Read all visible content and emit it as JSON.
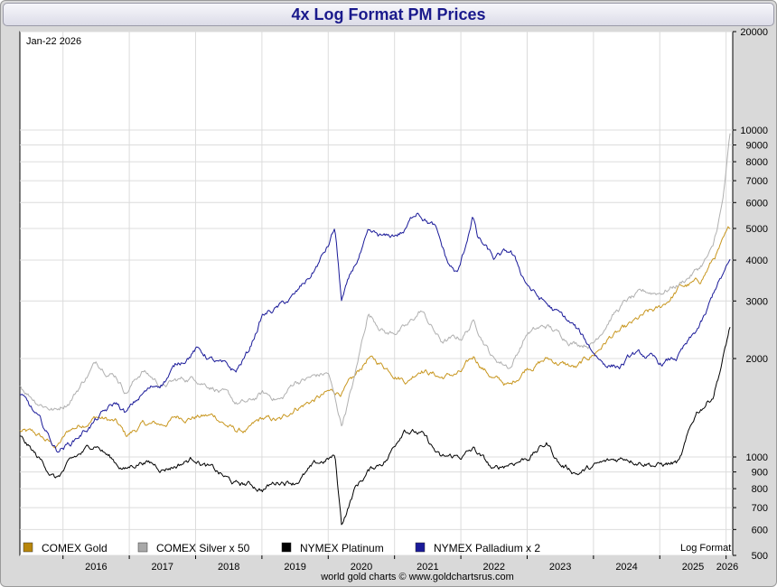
{
  "chart_data": {
    "type": "line",
    "title": "4x Log Format PM Prices",
    "date_label": "Jan-22  2026",
    "scale_note": "Log Format",
    "footer": "world gold charts © www.goldchartsrus.com",
    "y_scale": "log",
    "ylim": [
      500,
      20000
    ],
    "y_ticks": [
      500,
      600,
      700,
      800,
      900,
      1000,
      2000,
      3000,
      4000,
      5000,
      6000,
      7000,
      8000,
      9000,
      10000,
      20000
    ],
    "xlim": [
      2015.35,
      2026.1
    ],
    "x_ticks": [
      "2016",
      "2017",
      "2018",
      "2019",
      "2020",
      "2021",
      "2022",
      "2023",
      "2024",
      "2025",
      "2026"
    ],
    "series": [
      {
        "name": "COMEX Gold",
        "color": "#c8961e",
        "legend_color": "#b8860b",
        "points": [
          [
            2015.35,
            1200
          ],
          [
            2015.6,
            1160
          ],
          [
            2015.9,
            1070
          ],
          [
            2016.1,
            1200
          ],
          [
            2016.5,
            1340
          ],
          [
            2016.8,
            1270
          ],
          [
            2016.95,
            1150
          ],
          [
            2017.2,
            1250
          ],
          [
            2017.5,
            1250
          ],
          [
            2017.7,
            1320
          ],
          [
            2018.0,
            1340
          ],
          [
            2018.3,
            1330
          ],
          [
            2018.6,
            1200
          ],
          [
            2018.8,
            1200
          ],
          [
            2019.0,
            1290
          ],
          [
            2019.3,
            1280
          ],
          [
            2019.5,
            1420
          ],
          [
            2019.75,
            1490
          ],
          [
            2020.0,
            1560
          ],
          [
            2020.2,
            1580
          ],
          [
            2020.4,
            1720
          ],
          [
            2020.6,
            2000
          ],
          [
            2020.9,
            1870
          ],
          [
            2021.2,
            1730
          ],
          [
            2021.4,
            1900
          ],
          [
            2021.7,
            1760
          ],
          [
            2022.0,
            1800
          ],
          [
            2022.2,
            2000
          ],
          [
            2022.5,
            1740
          ],
          [
            2022.75,
            1640
          ],
          [
            2023.0,
            1900
          ],
          [
            2023.3,
            2000
          ],
          [
            2023.5,
            1940
          ],
          [
            2023.75,
            1860
          ],
          [
            2024.0,
            2050
          ],
          [
            2024.25,
            2330
          ],
          [
            2024.5,
            2450
          ],
          [
            2024.8,
            2700
          ],
          [
            2025.0,
            2800
          ],
          [
            2025.3,
            3300
          ],
          [
            2025.6,
            3400
          ],
          [
            2025.8,
            4000
          ],
          [
            2026.06,
            4900
          ]
        ]
      },
      {
        "name": "COMEX Silver x 50",
        "color": "#b0b0b0",
        "legend_color": "#a8a8a8",
        "points": [
          [
            2015.35,
            1650
          ],
          [
            2015.6,
            1500
          ],
          [
            2015.9,
            1400
          ],
          [
            2016.1,
            1500
          ],
          [
            2016.5,
            1950
          ],
          [
            2016.8,
            1800
          ],
          [
            2016.95,
            1600
          ],
          [
            2017.2,
            1850
          ],
          [
            2017.5,
            1650
          ],
          [
            2017.7,
            1700
          ],
          [
            2018.0,
            1750
          ],
          [
            2018.3,
            1650
          ],
          [
            2018.6,
            1450
          ],
          [
            2018.8,
            1450
          ],
          [
            2019.0,
            1550
          ],
          [
            2019.3,
            1500
          ],
          [
            2019.5,
            1700
          ],
          [
            2019.75,
            1750
          ],
          [
            2020.0,
            1800
          ],
          [
            2020.2,
            1250
          ],
          [
            2020.4,
            1750
          ],
          [
            2020.6,
            2750
          ],
          [
            2020.9,
            2400
          ],
          [
            2021.2,
            2500
          ],
          [
            2021.4,
            2800
          ],
          [
            2021.7,
            2250
          ],
          [
            2022.0,
            2300
          ],
          [
            2022.2,
            2600
          ],
          [
            2022.5,
            2000
          ],
          [
            2022.75,
            1900
          ],
          [
            2023.0,
            2400
          ],
          [
            2023.3,
            2500
          ],
          [
            2023.5,
            2350
          ],
          [
            2023.75,
            2250
          ],
          [
            2024.0,
            2250
          ],
          [
            2024.25,
            2700
          ],
          [
            2024.5,
            3000
          ],
          [
            2024.8,
            3150
          ],
          [
            2025.0,
            3200
          ],
          [
            2025.3,
            3400
          ],
          [
            2025.6,
            3800
          ],
          [
            2025.8,
            4300
          ],
          [
            2025.95,
            6000
          ],
          [
            2026.06,
            9500
          ]
        ]
      },
      {
        "name": "NYMEX Platinum",
        "color": "#000000",
        "legend_color": "#000000",
        "points": [
          [
            2015.35,
            1150
          ],
          [
            2015.6,
            1000
          ],
          [
            2015.9,
            860
          ],
          [
            2016.1,
            950
          ],
          [
            2016.5,
            1100
          ],
          [
            2016.8,
            960
          ],
          [
            2016.95,
            920
          ],
          [
            2017.2,
            980
          ],
          [
            2017.5,
            930
          ],
          [
            2017.7,
            950
          ],
          [
            2018.0,
            1000
          ],
          [
            2018.3,
            900
          ],
          [
            2018.6,
            820
          ],
          [
            2018.8,
            820
          ],
          [
            2019.0,
            800
          ],
          [
            2019.3,
            850
          ],
          [
            2019.5,
            850
          ],
          [
            2019.75,
            920
          ],
          [
            2020.0,
            980
          ],
          [
            2020.1,
            1000
          ],
          [
            2020.2,
            620
          ],
          [
            2020.4,
            800
          ],
          [
            2020.6,
            900
          ],
          [
            2020.9,
            1000
          ],
          [
            2021.15,
            1250
          ],
          [
            2021.4,
            1180
          ],
          [
            2021.7,
            980
          ],
          [
            2022.0,
            1000
          ],
          [
            2022.2,
            1050
          ],
          [
            2022.5,
            900
          ],
          [
            2022.75,
            960
          ],
          [
            2023.0,
            1000
          ],
          [
            2023.3,
            1100
          ],
          [
            2023.5,
            950
          ],
          [
            2023.75,
            900
          ],
          [
            2024.0,
            930
          ],
          [
            2024.25,
            960
          ],
          [
            2024.5,
            1000
          ],
          [
            2024.8,
            980
          ],
          [
            2025.0,
            950
          ],
          [
            2025.3,
            960
          ],
          [
            2025.55,
            1350
          ],
          [
            2025.8,
            1550
          ],
          [
            2025.95,
            2000
          ],
          [
            2026.06,
            2500
          ]
        ]
      },
      {
        "name": "NYMEX Palladium x 2",
        "color": "#1a1a99",
        "legend_color": "#1a1a99",
        "points": [
          [
            2015.35,
            1550
          ],
          [
            2015.6,
            1320
          ],
          [
            2015.9,
            1050
          ],
          [
            2016.1,
            1100
          ],
          [
            2016.5,
            1300
          ],
          [
            2016.8,
            1450
          ],
          [
            2016.95,
            1350
          ],
          [
            2017.2,
            1550
          ],
          [
            2017.5,
            1700
          ],
          [
            2017.7,
            1900
          ],
          [
            2018.0,
            2150
          ],
          [
            2018.3,
            1950
          ],
          [
            2018.6,
            1800
          ],
          [
            2018.8,
            2100
          ],
          [
            2019.0,
            2700
          ],
          [
            2019.3,
            2900
          ],
          [
            2019.5,
            3100
          ],
          [
            2019.75,
            3600
          ],
          [
            2020.0,
            4400
          ],
          [
            2020.1,
            5000
          ],
          [
            2020.2,
            3000
          ],
          [
            2020.4,
            3800
          ],
          [
            2020.6,
            4700
          ],
          [
            2020.9,
            4600
          ],
          [
            2021.15,
            4900
          ],
          [
            2021.35,
            5700
          ],
          [
            2021.6,
            5100
          ],
          [
            2021.8,
            3900
          ],
          [
            2021.95,
            3600
          ],
          [
            2022.05,
            4200
          ],
          [
            2022.18,
            5500
          ],
          [
            2022.25,
            4700
          ],
          [
            2022.5,
            4000
          ],
          [
            2022.75,
            4200
          ],
          [
            2022.95,
            3500
          ],
          [
            2023.15,
            3100
          ],
          [
            2023.4,
            2800
          ],
          [
            2023.7,
            2500
          ],
          [
            2023.95,
            2150
          ],
          [
            2024.15,
            1950
          ],
          [
            2024.4,
            1900
          ],
          [
            2024.6,
            2050
          ],
          [
            2024.85,
            2000
          ],
          [
            2025.0,
            1900
          ],
          [
            2025.25,
            2000
          ],
          [
            2025.5,
            2300
          ],
          [
            2025.7,
            2700
          ],
          [
            2025.85,
            3300
          ],
          [
            2026.06,
            3900
          ]
        ]
      }
    ]
  }
}
